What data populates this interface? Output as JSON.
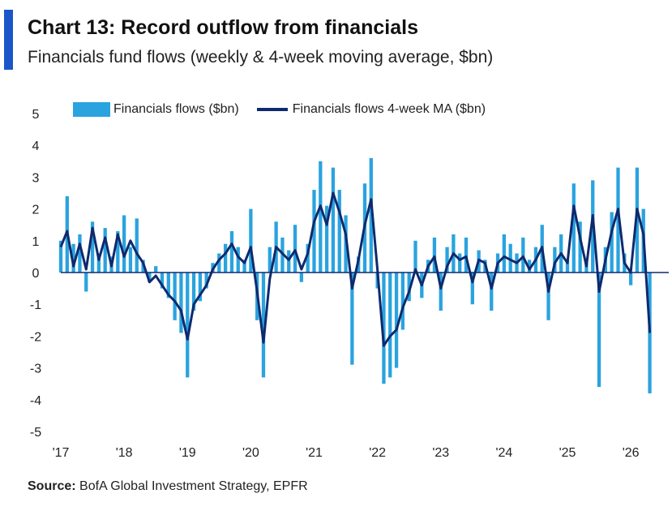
{
  "header": {
    "title": "Chart 13: Record outflow from financials",
    "subtitle": "Financials fund flows (weekly & 4-week moving average, $bn)"
  },
  "footer": {
    "source_label": "Source:",
    "source_text": "BofA Global Investment Strategy, EPFR"
  },
  "colors": {
    "accent": "#1a56c9",
    "bars": "#2aa3df",
    "ma_line": "#0e2a6e",
    "zero_line": "#0e2a6e"
  },
  "chart_data": {
    "type": "bar",
    "title": "Chart 13: Record outflow from financials",
    "subtitle": "Financials fund flows (weekly & 4-week moving average, $bn)",
    "xlabel": "",
    "ylabel": "",
    "ylim": [
      -5,
      5
    ],
    "yticks": [
      "5",
      "4",
      "3",
      "2",
      "1",
      "0",
      "-1",
      "-2",
      "-3",
      "-4",
      "-5"
    ],
    "xticks": [
      "'17",
      "'18",
      "'19",
      "'20",
      "'21",
      "'22",
      "'23",
      "'24",
      "'25",
      "'26"
    ],
    "xlim_years": [
      2017.0,
      2026.6
    ],
    "grid": false,
    "legend_position": "top-left",
    "series": [
      {
        "name": "Financials flows ($bn)",
        "kind": "bar",
        "x": [
          2017.0,
          2017.1,
          2017.2,
          2017.3,
          2017.4,
          2017.5,
          2017.6,
          2017.7,
          2017.8,
          2017.9,
          2018.0,
          2018.1,
          2018.2,
          2018.3,
          2018.4,
          2018.5,
          2018.6,
          2018.7,
          2018.8,
          2018.9,
          2019.0,
          2019.1,
          2019.2,
          2019.3,
          2019.4,
          2019.5,
          2019.6,
          2019.7,
          2019.8,
          2019.9,
          2020.0,
          2020.1,
          2020.2,
          2020.3,
          2020.4,
          2020.5,
          2020.6,
          2020.7,
          2020.8,
          2020.9,
          2021.0,
          2021.1,
          2021.2,
          2021.3,
          2021.4,
          2021.5,
          2021.6,
          2021.7,
          2021.8,
          2021.9,
          2022.0,
          2022.1,
          2022.2,
          2022.3,
          2022.4,
          2022.5,
          2022.6,
          2022.7,
          2022.8,
          2022.9,
          2023.0,
          2023.1,
          2023.2,
          2023.3,
          2023.4,
          2023.5,
          2023.6,
          2023.7,
          2023.8,
          2023.9,
          2024.0,
          2024.1,
          2024.2,
          2024.3,
          2024.4,
          2024.5,
          2024.6,
          2024.7,
          2024.8,
          2024.9,
          2025.0,
          2025.1,
          2025.2,
          2025.3,
          2025.4,
          2025.5,
          2025.6,
          2025.7,
          2025.8,
          2025.9,
          2026.0,
          2026.1,
          2026.2,
          2026.3
        ],
        "values": [
          1.0,
          2.4,
          0.9,
          1.2,
          -0.6,
          1.6,
          0.6,
          1.4,
          0.5,
          1.3,
          1.8,
          0.8,
          1.7,
          0.4,
          -0.3,
          0.2,
          -0.5,
          -0.8,
          -1.5,
          -1.9,
          -3.3,
          -1.2,
          -0.9,
          -0.5,
          0.3,
          0.6,
          0.9,
          1.3,
          0.8,
          0.4,
          2.0,
          -1.5,
          -3.3,
          0.8,
          1.6,
          1.1,
          0.7,
          1.5,
          -0.3,
          0.9,
          2.6,
          3.5,
          2.1,
          3.3,
          2.6,
          1.8,
          -2.9,
          0.5,
          2.8,
          3.6,
          -0.5,
          -3.5,
          -3.3,
          -3.0,
          -1.8,
          -0.9,
          1.0,
          -0.8,
          0.4,
          1.1,
          -1.2,
          0.8,
          1.2,
          0.6,
          1.1,
          -1.0,
          0.7,
          0.4,
          -1.2,
          0.6,
          1.2,
          0.9,
          0.6,
          1.1,
          0.4,
          0.8,
          1.5,
          -1.5,
          0.8,
          1.2,
          0.4,
          2.8,
          1.6,
          0.3,
          2.9,
          -3.6,
          0.8,
          1.9,
          3.3,
          0.6,
          -0.4,
          3.3,
          2.0,
          -3.8
        ],
        "color": "#2aa3df"
      },
      {
        "name": "Financials flows 4-week MA ($bn)",
        "kind": "line",
        "x": [
          2017.0,
          2017.1,
          2017.2,
          2017.3,
          2017.4,
          2017.5,
          2017.6,
          2017.7,
          2017.8,
          2017.9,
          2018.0,
          2018.1,
          2018.2,
          2018.3,
          2018.4,
          2018.5,
          2018.6,
          2018.7,
          2018.8,
          2018.9,
          2019.0,
          2019.1,
          2019.2,
          2019.3,
          2019.4,
          2019.5,
          2019.6,
          2019.7,
          2019.8,
          2019.9,
          2020.0,
          2020.1,
          2020.2,
          2020.3,
          2020.4,
          2020.5,
          2020.6,
          2020.7,
          2020.8,
          2020.9,
          2021.0,
          2021.1,
          2021.2,
          2021.3,
          2021.4,
          2021.5,
          2021.6,
          2021.7,
          2021.8,
          2021.9,
          2022.0,
          2022.1,
          2022.2,
          2022.3,
          2022.4,
          2022.5,
          2022.6,
          2022.7,
          2022.8,
          2022.9,
          2023.0,
          2023.1,
          2023.2,
          2023.3,
          2023.4,
          2023.5,
          2023.6,
          2023.7,
          2023.8,
          2023.9,
          2024.0,
          2024.1,
          2024.2,
          2024.3,
          2024.4,
          2024.5,
          2024.6,
          2024.7,
          2024.8,
          2024.9,
          2025.0,
          2025.1,
          2025.2,
          2025.3,
          2025.4,
          2025.5,
          2025.6,
          2025.7,
          2025.8,
          2025.9,
          2026.0,
          2026.1,
          2026.2,
          2026.3
        ],
        "values": [
          0.8,
          1.3,
          0.2,
          0.9,
          0.1,
          1.4,
          0.4,
          1.1,
          0.2,
          1.2,
          0.5,
          1.0,
          0.6,
          0.3,
          -0.3,
          -0.1,
          -0.4,
          -0.7,
          -0.9,
          -1.2,
          -2.1,
          -1.0,
          -0.7,
          -0.4,
          0.1,
          0.4,
          0.6,
          0.9,
          0.5,
          0.3,
          0.8,
          -0.6,
          -2.2,
          -0.2,
          0.8,
          0.6,
          0.4,
          0.7,
          0.1,
          0.6,
          1.6,
          2.1,
          1.5,
          2.5,
          1.9,
          1.2,
          -0.5,
          0.4,
          1.5,
          2.3,
          0.1,
          -2.3,
          -2.0,
          -1.8,
          -1.1,
          -0.6,
          0.1,
          -0.4,
          0.2,
          0.5,
          -0.5,
          0.2,
          0.6,
          0.4,
          0.5,
          -0.3,
          0.4,
          0.3,
          -0.5,
          0.3,
          0.5,
          0.4,
          0.3,
          0.5,
          0.1,
          0.4,
          0.8,
          -0.6,
          0.3,
          0.6,
          0.3,
          2.1,
          1.1,
          0.2,
          1.8,
          -0.6,
          0.4,
          1.3,
          2.0,
          0.3,
          0.0,
          2.0,
          1.2,
          -1.9
        ],
        "color": "#0e2a6e"
      }
    ]
  }
}
